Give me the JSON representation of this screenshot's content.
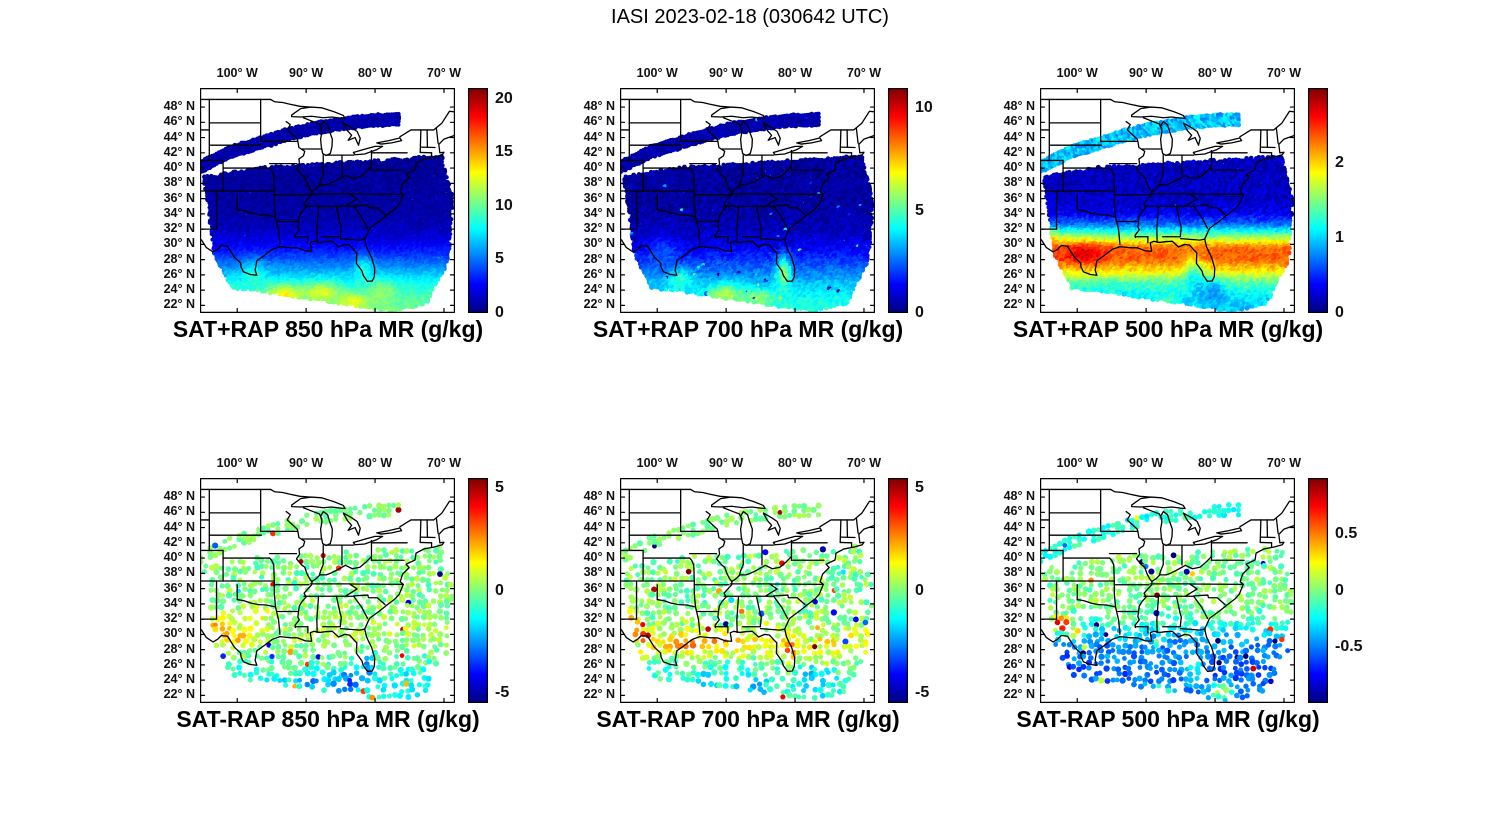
{
  "figure": {
    "title": "IASI 2023-02-18 (030642 UTC)"
  },
  "axes": {
    "lon_tick_values": [
      -100,
      -90,
      -80,
      -70
    ],
    "lon_tick_labels": [
      "100° W",
      "90° W",
      "80° W",
      "70° W"
    ],
    "lat_tick_values": [
      48,
      46,
      44,
      42,
      40,
      38,
      36,
      34,
      32,
      30,
      28,
      26,
      24,
      22
    ],
    "lat_tick_labels": [
      "48° N",
      "46° N",
      "44° N",
      "42° N",
      "40° N",
      "38° N",
      "36° N",
      "34° N",
      "32° N",
      "30° N",
      "28° N",
      "26° N",
      "24° N",
      "22° N"
    ],
    "xlim": [
      -105.4,
      -68.4
    ],
    "ylim": [
      21,
      50.5
    ]
  },
  "style": {
    "colormap": "jet",
    "background": "#ffffff",
    "map_line_color": "#000000",
    "text_color": "#000000"
  },
  "swath": {
    "main_polygon": [
      [
        -104.9,
        38.9
      ],
      [
        -97,
        40.1
      ],
      [
        -88,
        40.6
      ],
      [
        -79,
        41.1
      ],
      [
        -70.3,
        41.6
      ],
      [
        -68.7,
        36
      ],
      [
        -69.3,
        28
      ],
      [
        -72.5,
        22.2
      ],
      [
        -77.5,
        21.2
      ],
      [
        -90,
        22.9
      ],
      [
        -97,
        23.9
      ],
      [
        -100.8,
        24.2
      ],
      [
        -103.3,
        28.6
      ]
    ],
    "arc_centerline": [
      [
        -105.4,
        40.2
      ],
      [
        -101,
        42.2
      ],
      [
        -97,
        43.3
      ],
      [
        -93,
        44.4
      ],
      [
        -89,
        45.3
      ],
      [
        -85,
        45.9
      ],
      [
        -81,
        46.3
      ],
      [
        -76.5,
        46.5
      ]
    ],
    "arc_halfwidth": 0.75
  },
  "chart_data": [
    {
      "title": "SAT+RAP 850 hPa MR (g/kg)",
      "type": "scatter",
      "x": "longitude",
      "y": "latitude",
      "color_variable": "850 hPa mixing ratio (g/kg)",
      "mode": "fill",
      "colorbar": {
        "min": 0,
        "max": 21,
        "tick_values": [
          0,
          5,
          10,
          15,
          20
        ],
        "tick_labels": [
          "0",
          "5",
          "10",
          "15",
          "20"
        ]
      },
      "lat_profile": [
        [
          21,
          10.5
        ],
        [
          23,
          9.5
        ],
        [
          25,
          8
        ],
        [
          27,
          5.5
        ],
        [
          29,
          3.2
        ],
        [
          30.5,
          2
        ],
        [
          32,
          1.2
        ],
        [
          34,
          0.8
        ],
        [
          38,
          0.6
        ],
        [
          50,
          0.5
        ]
      ],
      "spots": [
        [
          -93,
          23.5,
          2.5,
          1.2,
          4
        ],
        [
          -87.5,
          23.8,
          2.5,
          1.2,
          3.5
        ],
        [
          -83,
          22.5,
          2,
          1,
          3
        ],
        [
          -81.6,
          27,
          1.2,
          1.6,
          2.5
        ],
        [
          -97.5,
          26.5,
          1.6,
          1.5,
          2
        ],
        [
          -79,
          24,
          2,
          1.5,
          2
        ]
      ],
      "noise": 0.6,
      "arc": {
        "value": 0.9,
        "noise": 0.5
      },
      "outliers": {
        "prob": 0,
        "amp": 0
      }
    },
    {
      "title": "SAT+RAP 700 hPa MR (g/kg)",
      "type": "scatter",
      "x": "longitude",
      "y": "latitude",
      "color_variable": "700 hPa mixing ratio (g/kg)",
      "mode": "fill",
      "colorbar": {
        "min": 0,
        "max": 11,
        "tick_values": [
          0,
          5,
          10
        ],
        "tick_labels": [
          "0",
          "5",
          "10"
        ]
      },
      "lat_profile": [
        [
          21,
          4.6
        ],
        [
          23,
          4.2
        ],
        [
          25,
          3.4
        ],
        [
          27,
          2.4
        ],
        [
          29,
          1.4
        ],
        [
          31,
          0.8
        ],
        [
          33,
          0.5
        ],
        [
          36,
          0.35
        ],
        [
          50,
          0.3
        ]
      ],
      "spots": [
        [
          -81.6,
          26.5,
          1,
          2,
          3
        ],
        [
          -90,
          23.5,
          2.5,
          1.2,
          2
        ],
        [
          -96.5,
          25.5,
          1.6,
          1.2,
          1.5
        ],
        [
          -85,
          23,
          2,
          1,
          1.5
        ],
        [
          -99,
          29.5,
          2,
          1.5,
          0.8
        ]
      ],
      "noise": 0.45,
      "arc": {
        "value": 0.5,
        "noise": 0.35
      },
      "outliers": {
        "prob": 0.01,
        "amp": 1.5
      }
    },
    {
      "title": "SAT+RAP 500 hPa MR (g/kg)",
      "type": "scatter",
      "x": "longitude",
      "y": "latitude",
      "color_variable": "500 hPa mixing ratio (g/kg)",
      "mode": "fill",
      "colorbar": {
        "min": 0,
        "max": 3,
        "tick_values": [
          0,
          1,
          2
        ],
        "tick_labels": [
          "0",
          "1",
          "2"
        ]
      },
      "lat_profile": [
        [
          21,
          0.95
        ],
        [
          23,
          1.05
        ],
        [
          25,
          1.4
        ],
        [
          26.5,
          1.95
        ],
        [
          28,
          2.35
        ],
        [
          29.5,
          2.3
        ],
        [
          31,
          1.5
        ],
        [
          32.5,
          0.7
        ],
        [
          34,
          0.32
        ],
        [
          36,
          0.2
        ],
        [
          50,
          0.15
        ]
      ],
      "spots": [
        [
          -99,
          28.8,
          3,
          1.8,
          0.4
        ],
        [
          -104,
          31,
          1.6,
          1.4,
          0.35
        ],
        [
          -83,
          26.5,
          1.6,
          2,
          -0.55
        ],
        [
          -80.3,
          24,
          2,
          1.6,
          -0.35
        ],
        [
          -87,
          22.5,
          2,
          1,
          0.25
        ]
      ],
      "noise": 0.14,
      "arc": {
        "value": 0.95,
        "noise": 0.22
      },
      "outliers": {
        "prob": 0,
        "amp": 0
      }
    },
    {
      "title": "SAT-RAP 850 hPa MR (g/kg)",
      "type": "scatter",
      "x": "longitude",
      "y": "latitude",
      "color_variable": "850 hPa mixing-ratio difference (g/kg)",
      "mode": "dots",
      "colorbar": {
        "min": -5.5,
        "max": 5.5,
        "tick_values": [
          -5,
          0,
          5
        ],
        "tick_labels": [
          "-5",
          "0",
          "5"
        ]
      },
      "lat_profile": [
        [
          21,
          -1.3
        ],
        [
          24,
          -1
        ],
        [
          26,
          -0.6
        ],
        [
          28,
          0.2
        ],
        [
          30,
          0.4
        ],
        [
          33,
          0.15
        ],
        [
          36,
          0
        ],
        [
          50,
          0
        ]
      ],
      "spots": [
        [
          -102.5,
          31,
          1.6,
          1.5,
          2.2
        ],
        [
          -99.5,
          29.5,
          1.6,
          1.2,
          2
        ],
        [
          -97,
          32.5,
          2,
          1.6,
          1.2
        ],
        [
          -84,
          23.5,
          2.5,
          1.6,
          -2.2
        ],
        [
          -80.8,
          26.5,
          0.8,
          1.6,
          -2.6
        ],
        [
          -89,
          24,
          2,
          1.2,
          -1.6
        ],
        [
          -82.8,
          21.9,
          0.6,
          0.5,
          5.5
        ],
        [
          -95,
          23.5,
          1.6,
          1,
          -1.5
        ]
      ],
      "noise": 0.7,
      "arc": {
        "value": 0,
        "noise": 0.5
      },
      "outliers": {
        "prob": 0.03,
        "amp": 2.2
      }
    },
    {
      "title": "SAT-RAP 700 hPa MR (g/kg)",
      "type": "scatter",
      "x": "longitude",
      "y": "latitude",
      "color_variable": "700 hPa mixing-ratio difference (g/kg)",
      "mode": "dots",
      "colorbar": {
        "min": -5.5,
        "max": 5.5,
        "tick_values": [
          -5,
          0,
          5
        ],
        "tick_labels": [
          "-5",
          "0",
          "5"
        ]
      },
      "lat_profile": [
        [
          21,
          -0.9
        ],
        [
          24,
          -0.9
        ],
        [
          26,
          -0.5
        ],
        [
          27.5,
          0.8
        ],
        [
          29,
          1.4
        ],
        [
          30.5,
          0.6
        ],
        [
          32,
          0.1
        ],
        [
          35,
          0
        ],
        [
          50,
          0
        ]
      ],
      "spots": [
        [
          -103.8,
          31.5,
          0.9,
          1.1,
          4
        ],
        [
          -102.3,
          29.8,
          0.9,
          0.9,
          3
        ],
        [
          -96,
          28.8,
          2.5,
          1,
          1.5
        ],
        [
          -91,
          29.3,
          2,
          0.9,
          1.8
        ],
        [
          -80.6,
          27.5,
          0.8,
          1.6,
          2.5
        ],
        [
          -86,
          23,
          2,
          1.2,
          -1.6
        ],
        [
          -93,
          24,
          2,
          1,
          -1.2
        ],
        [
          -77.5,
          24,
          2,
          2,
          -1.5
        ]
      ],
      "noise": 0.8,
      "arc": {
        "value": 0,
        "noise": 0.5
      },
      "outliers": {
        "prob": 0.035,
        "amp": 2.4
      }
    },
    {
      "title": "SAT-RAP 500 hPa MR (g/kg)",
      "type": "scatter",
      "x": "longitude",
      "y": "latitude",
      "color_variable": "500 hPa mixing-ratio difference (g/kg)",
      "mode": "dots",
      "colorbar": {
        "min": -1,
        "max": 1,
        "tick_values": [
          -0.5,
          0,
          0.5
        ],
        "tick_labels": [
          "-0.5",
          "0",
          "0.5"
        ]
      },
      "lat_profile": [
        [
          21,
          -0.45
        ],
        [
          23,
          -0.52
        ],
        [
          25,
          -0.56
        ],
        [
          27,
          -0.5
        ],
        [
          29,
          -0.45
        ],
        [
          30.5,
          -0.3
        ],
        [
          32,
          -0.1
        ],
        [
          34,
          0
        ],
        [
          50,
          0
        ]
      ],
      "spots": [
        [
          -102.3,
          31.3,
          1.1,
          0.9,
          1.3
        ],
        [
          -100.4,
          30.2,
          0.9,
          0.7,
          0.8
        ],
        [
          -83,
          25.5,
          1.6,
          1.6,
          0.35
        ],
        [
          -79,
          22.5,
          1.6,
          1.1,
          0.65
        ],
        [
          -88,
          22.5,
          1.6,
          0.9,
          0.55
        ],
        [
          -94,
          22.8,
          1.3,
          0.9,
          0.45
        ],
        [
          -103,
          27.5,
          1.6,
          1.6,
          -0.25
        ]
      ],
      "noise": 0.13,
      "arc": {
        "value": -0.18,
        "noise": 0.12
      },
      "outliers": {
        "prob": 0.045,
        "amp": 0.55
      }
    }
  ]
}
